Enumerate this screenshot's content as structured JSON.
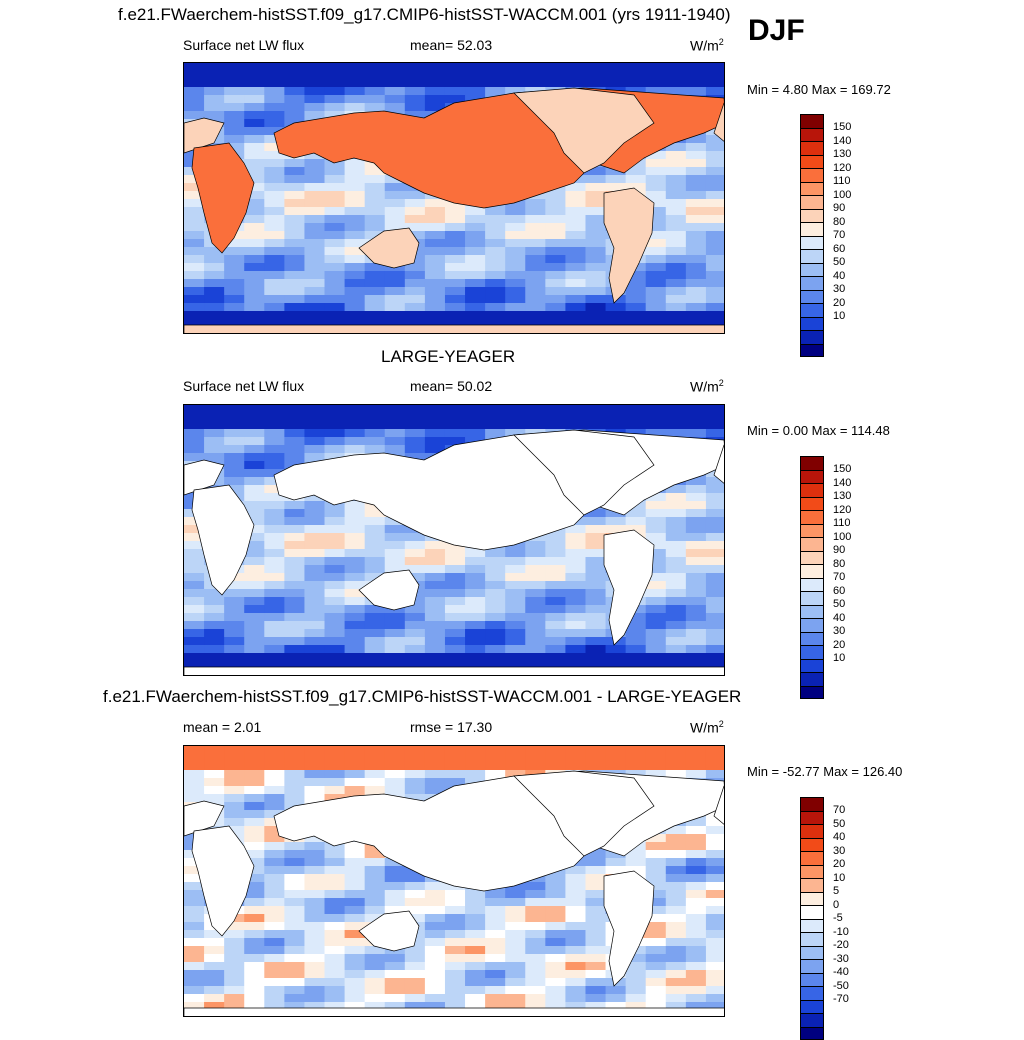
{
  "season": "DJF",
  "colors": {
    "land": "#ffffff",
    "coast": "#000000"
  },
  "panels": [
    {
      "id": "model",
      "title": "f.e21.FWaerchem-histSST.f09_g17.CMIP6-histSST-WACCM.001 (yrs 1911-1940)",
      "left_label": "Surface net LW flux",
      "center_label": "mean=  52.03",
      "units": "W/m",
      "units_sup": "2",
      "minmax": "Min =   4.80 Max = 169.72",
      "land_masked": false,
      "cbar_colors": [
        "#800000",
        "#b8150a",
        "#dd300e",
        "#f24b18",
        "#fa6f3b",
        "#fc9565",
        "#fcb591",
        "#fcd3b9",
        "#fdeee0",
        "#dceafb",
        "#bcd5f7",
        "#9cbef4",
        "#7ca3f0",
        "#5b86ec",
        "#3765e6",
        "#1a43d7",
        "#0a22b4",
        "#000080"
      ],
      "cbar_labels": [
        "150",
        "140",
        "130",
        "120",
        "110",
        "100",
        "90",
        "80",
        "70",
        "60",
        "50",
        "40",
        "30",
        "20",
        "10"
      ]
    },
    {
      "id": "obs",
      "title": "LARGE-YEAGER",
      "left_label": "Surface net LW flux",
      "center_label": "mean=  50.02",
      "units": "W/m",
      "units_sup": "2",
      "minmax": "Min =   0.00 Max = 114.48",
      "land_masked": true,
      "cbar_colors": [
        "#800000",
        "#b8150a",
        "#dd300e",
        "#f24b18",
        "#fa6f3b",
        "#fc9565",
        "#fcb591",
        "#fcd3b9",
        "#fdeee0",
        "#dceafb",
        "#bcd5f7",
        "#9cbef4",
        "#7ca3f0",
        "#5b86ec",
        "#3765e6",
        "#1a43d7",
        "#0a22b4",
        "#000080"
      ],
      "cbar_labels": [
        "150",
        "140",
        "130",
        "120",
        "110",
        "100",
        "90",
        "80",
        "70",
        "60",
        "50",
        "40",
        "30",
        "20",
        "10"
      ]
    },
    {
      "id": "diff",
      "title": "f.e21.FWaerchem-histSST.f09_g17.CMIP6-histSST-WACCM.001 - LARGE-YEAGER",
      "left_label": "mean =   2.01",
      "center_label": "rmse =  17.30",
      "units": "W/m",
      "units_sup": "2",
      "minmax": "Min = -52.77 Max = 126.40",
      "land_masked": true,
      "cbar_colors": [
        "#800000",
        "#b8150a",
        "#dd300e",
        "#f24b18",
        "#fa6f3b",
        "#fc9565",
        "#fcb591",
        "#fdeee0",
        "#ffffff",
        "#dceafb",
        "#bcd5f7",
        "#9cbef4",
        "#7ca3f0",
        "#5b86ec",
        "#3765e6",
        "#1a43d7",
        "#0a22b4",
        "#000080"
      ],
      "cbar_labels": [
        "70",
        "50",
        "40",
        "30",
        "20",
        "10",
        "5",
        "0",
        "-5",
        "-10",
        "-20",
        "-30",
        "-40",
        "-50",
        "-70"
      ]
    }
  ]
}
